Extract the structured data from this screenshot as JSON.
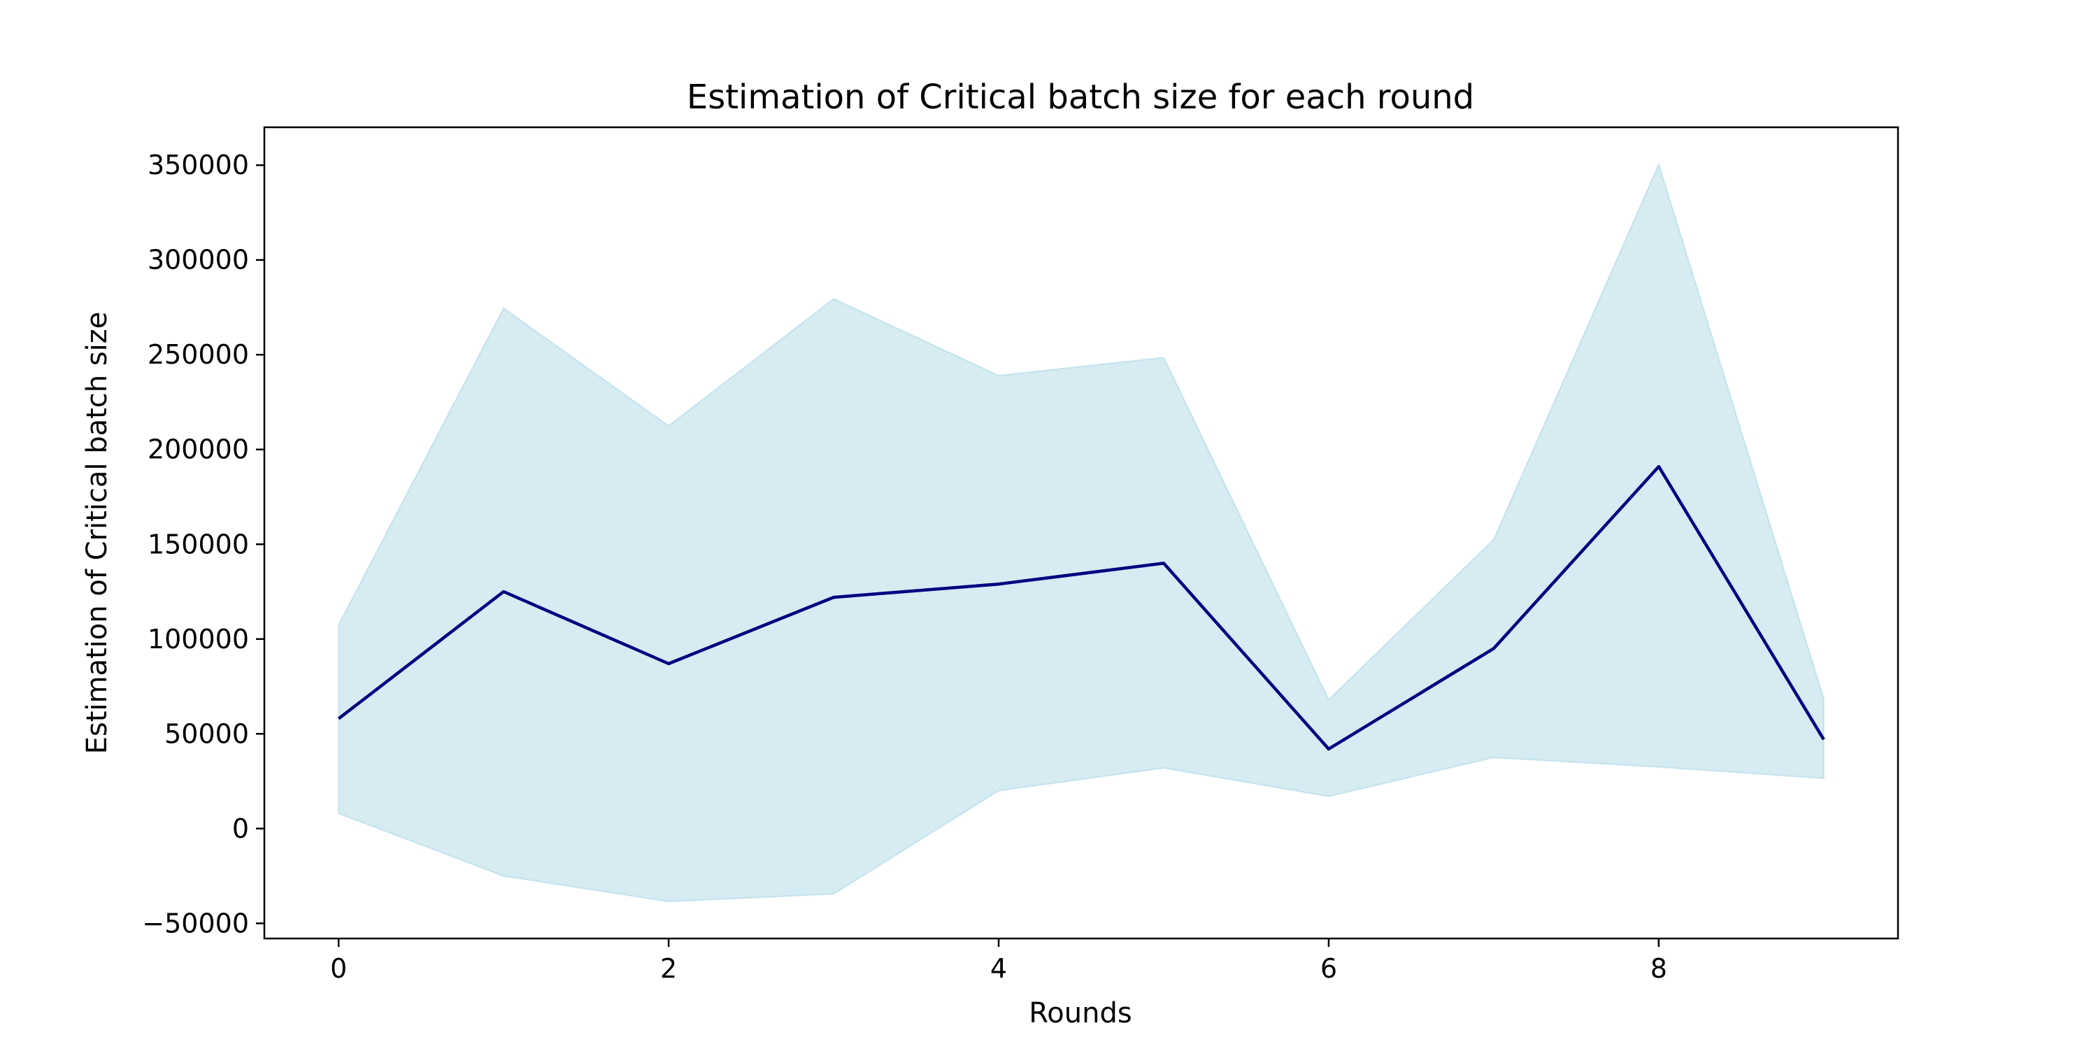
{
  "chart_data": {
    "type": "line",
    "title": "Estimation of Critical batch size for each round",
    "xlabel": "Rounds",
    "ylabel": "Estimation of Critical batch size",
    "xlim": [
      -0.45,
      9.45
    ],
    "ylim": [
      -58000,
      370000
    ],
    "x_ticks": [
      0,
      2,
      4,
      6,
      8
    ],
    "y_ticks": [
      -50000,
      0,
      50000,
      100000,
      150000,
      200000,
      250000,
      300000,
      350000
    ],
    "grid": false,
    "x": [
      0,
      1,
      2,
      3,
      4,
      5,
      6,
      7,
      8,
      9
    ],
    "series": [
      {
        "values": [
          58000,
          125000,
          87000,
          122000,
          129000,
          140000,
          42000,
          95000,
          191000,
          47000
        ],
        "band_lower": [
          8000,
          -25000,
          -38500,
          -34500,
          20000,
          32000,
          17000,
          37500,
          32500,
          26500
        ],
        "band_upper": [
          107500,
          274500,
          212500,
          279500,
          239000,
          248500,
          68000,
          152500,
          350500,
          68500
        ],
        "line_color": "#000080",
        "band_color": "#add8e6"
      }
    ]
  }
}
